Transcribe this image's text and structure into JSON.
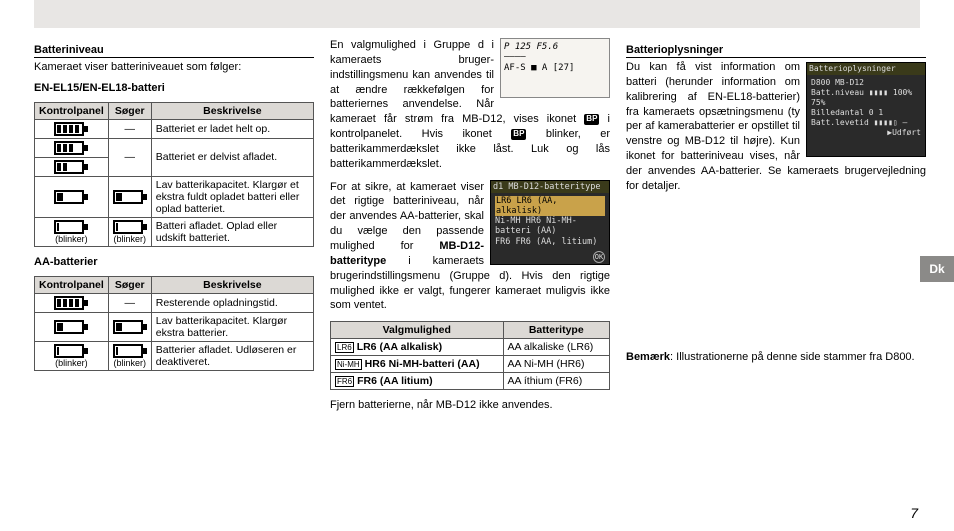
{
  "page_number": "7",
  "lang_tab": "Dk",
  "left": {
    "heading": "Batteriniveau",
    "intro": "Kameraet viser batteriniveauet som følger:",
    "sub1": "EN-EL15/EN-EL18-batteri",
    "sub2": "AA-batterier",
    "table_headers": {
      "c1": "Kontrolpanel",
      "c2": "Søger",
      "c3": "Beskrivelse"
    },
    "blinker": "(blinker)",
    "dash": "—",
    "t1": [
      {
        "fill": 24,
        "seg": true,
        "finder": "dash",
        "desc": "Batteriet er ladet helt op."
      },
      {
        "fill": 18,
        "seg": true,
        "finder": "dash",
        "desc": "Batteriet er delvist afladet.",
        "double": true
      },
      {
        "fill": 6,
        "seg": false,
        "finder": "low",
        "desc": "Lav batterikapacitet. Klargør et ekstra fuldt opladet batteri eller oplad batteriet."
      },
      {
        "fill": 2,
        "seg": false,
        "finder": "empty",
        "desc": "Batteri afladet. Oplad eller udskift batteriet.",
        "blink": true
      }
    ],
    "t2": [
      {
        "fill": 24,
        "seg": true,
        "finder": "dash",
        "desc": "Resterende oplad­ningstid."
      },
      {
        "fill": 6,
        "seg": false,
        "finder": "low",
        "desc": "Lav batterikapacitet. Klargør ekstra bat­terier."
      },
      {
        "fill": 2,
        "seg": false,
        "finder": "empty",
        "desc": "Batterier afladet. Udlø­seren er deaktiveret.",
        "blink": true
      }
    ]
  },
  "mid": {
    "lcd1": {
      "top": "P   125  F5.6",
      "mid": "————",
      "bot": "AF-S ■ A        [27]"
    },
    "para1a": "En valgmulighed i Gruppe d i kameraets bruger­indstillingsmenu kan an­vendes til at ændre ræk­kefølgen for batteriernes ",
    "para1b": "anvendelse. Når kameraet får strøm fra MB-D12, vises ikonet ",
    "para1c": " i kontrolpanelet. Hvis ikonet ",
    "para1d": " blinker, er batterikammerdækslet ikke låst. Luk og lås batterikammerdækslet.",
    "lcd2": {
      "title": "d1 MB-D12-batteritype",
      "l1": "LR6 LR6 (AA, alkalisk)",
      "l2": "Ni-MH HR6 Ni-MH-batteri (AA)",
      "l3": "FR6 FR6 (AA, litium)"
    },
    "para2a": "For at sikre, at kameraet viser det rigtige batteri­niveau, når der anven­des AA-batterier, skal du vælge den passende mulighed for ",
    "para2b": "MB-D12-batteritype",
    "para2c": " i kameraets brugerindstillingsme­nu (Gruppe d). Hvis den rigtige mulighed ikke er valgt, fungerer kameraet muligvis ikke som ventet.",
    "table3_headers": {
      "c1": "Valgmulighed",
      "c2": "Batteritype"
    },
    "t3": [
      {
        "tag": "LR6",
        "opt": "LR6 (AA alkalisk)",
        "type": "AA alkaliske (LR6)"
      },
      {
        "tag": "Ni-MH",
        "opt": "HR6 Ni-MH-batteri (AA)",
        "type": "AA Ni-MH (HR6)"
      },
      {
        "tag": "FR6",
        "opt": "FR6 (AA litium)",
        "type": "AA íthium (FR6)"
      }
    ],
    "footer": "Fjern batterierne, når MB-D12 ikke anvendes."
  },
  "right": {
    "heading": "Batterioplysninger",
    "lcd3": {
      "title": "Batterioplysninger",
      "cols": "           D800   MB-D12",
      "l1": "Batt.niveau  ▮▮▮▮  100%   75%",
      "l2": "Billedantal        0      1",
      "l3": "Batt.levetid ▮▮▮▮▯   —",
      "l4": "                  ▶Udført"
    },
    "para_a": "Du kan få vist informa­tion om batteri (her­under information om kalibrering af EN-EL18-batterier) fra kameraets opsætningsmenu (ty­",
    "para_b": "per af kamerabatterier er opstillet til venstre og MB-D12 til højre). Kun ikonet for batteriniveau vises, når der anvendes AA-batterier. Se kame­raets brugervejledning for detaljer.",
    "note_label": "Bemærk",
    "note_text": ": Illustrationerne på denne side stammer fra D800."
  }
}
